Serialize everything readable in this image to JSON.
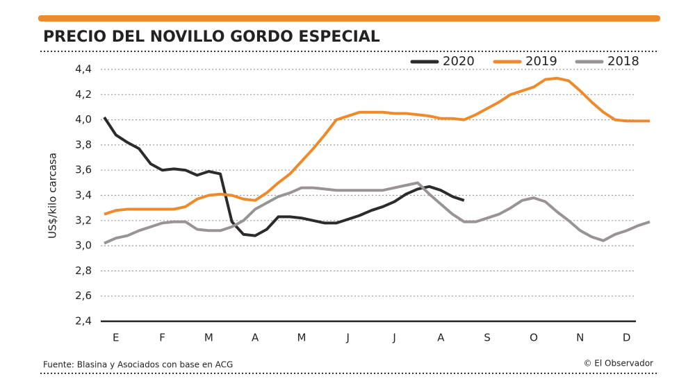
{
  "chart_data": {
    "type": "line",
    "title": "PRECIO DEL NOVILLO GORDO ESPECIAL",
    "y_label": "US$/kilo carcasa",
    "source": "Fuente: Blasina y Asociados con base en ACG",
    "credit": "© El Observador",
    "categories": [
      null,
      "E",
      null,
      null,
      null,
      "F",
      null,
      null,
      null,
      "M",
      null,
      null,
      null,
      "A",
      null,
      null,
      null,
      "M",
      null,
      null,
      null,
      "J",
      null,
      null,
      null,
      "J",
      null,
      null,
      null,
      "A",
      null,
      null,
      null,
      "S",
      null,
      null,
      null,
      "O",
      null,
      null,
      null,
      "N",
      null,
      null,
      null,
      "D",
      null,
      null
    ],
    "series": [
      {
        "name": "2020",
        "color": "#2b2b2b",
        "values": [
          4.02,
          3.88,
          3.82,
          3.77,
          3.65,
          3.6,
          3.61,
          3.6,
          3.56,
          3.59,
          3.57,
          3.19,
          3.09,
          3.08,
          3.13,
          3.23,
          3.23,
          3.22,
          3.2,
          3.18,
          3.18,
          3.21,
          3.24,
          3.28,
          3.31,
          3.35,
          3.41,
          3.45,
          3.47,
          3.44,
          3.39,
          3.36,
          null,
          null,
          null,
          null,
          null,
          null,
          null,
          null,
          null,
          null,
          null,
          null,
          null,
          null,
          null,
          null
        ]
      },
      {
        "name": "2019",
        "color": "#ee8a2a",
        "values": [
          3.25,
          3.28,
          3.29,
          3.29,
          3.29,
          3.29,
          3.29,
          3.31,
          3.37,
          3.4,
          3.41,
          3.4,
          3.37,
          3.36,
          3.42,
          3.5,
          3.57,
          3.67,
          3.77,
          3.88,
          4.0,
          4.03,
          4.06,
          4.06,
          4.06,
          4.05,
          4.05,
          4.04,
          4.03,
          4.01,
          4.01,
          4.0,
          4.04,
          4.09,
          4.14,
          4.2,
          4.23,
          4.26,
          4.32,
          4.33,
          4.31,
          4.23,
          4.14,
          4.06,
          4.0,
          3.99,
          3.99,
          3.99
        ]
      },
      {
        "name": "2018",
        "color": "#999393",
        "values": [
          3.02,
          3.06,
          3.08,
          3.12,
          3.15,
          3.18,
          3.19,
          3.19,
          3.13,
          3.12,
          3.12,
          3.15,
          3.2,
          3.29,
          3.34,
          3.39,
          3.42,
          3.46,
          3.46,
          3.45,
          3.44,
          3.44,
          3.44,
          3.44,
          3.44,
          3.46,
          3.48,
          3.5,
          3.41,
          3.33,
          3.25,
          3.19,
          3.19,
          3.22,
          3.25,
          3.3,
          3.36,
          3.38,
          3.35,
          3.27,
          3.2,
          3.12,
          3.07,
          3.04,
          3.09,
          3.12,
          3.16,
          3.19
        ]
      }
    ],
    "ylim": [
      2.4,
      4.4
    ],
    "yticks": [
      {
        "value": 2.4,
        "label": "2,4"
      },
      {
        "value": 2.6,
        "label": "2,6"
      },
      {
        "value": 2.8,
        "label": "2,8"
      },
      {
        "value": 3.0,
        "label": "3,0"
      },
      {
        "value": 3.2,
        "label": "3,2"
      },
      {
        "value": 3.4,
        "label": "3,4"
      },
      {
        "value": 3.6,
        "label": "3,6"
      },
      {
        "value": 3.8,
        "label": "3,8"
      },
      {
        "value": 4.0,
        "label": "4,0"
      },
      {
        "value": 4.2,
        "label": "4,2"
      },
      {
        "value": 4.4,
        "label": "4,4"
      }
    ],
    "grid": true
  }
}
